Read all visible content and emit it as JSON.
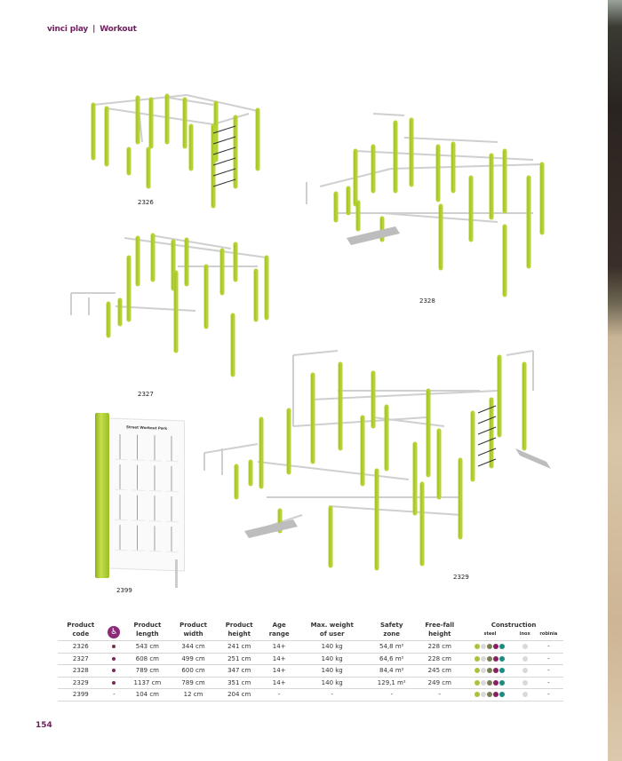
{
  "header": {
    "brand": "vinci play",
    "separator": "|",
    "section": "Workout"
  },
  "products": {
    "labels": [
      "2326",
      "2327",
      "2328",
      "2329",
      "2399"
    ],
    "board_title": "Street Workout Park"
  },
  "table": {
    "headers": {
      "code": [
        "Product",
        "code"
      ],
      "accessible_icon": "wheelchair-icon",
      "length": [
        "Product",
        "length"
      ],
      "width": [
        "Product",
        "width"
      ],
      "height": [
        "Product",
        "height"
      ],
      "age": [
        "Age",
        "range"
      ],
      "weight": [
        "Max. weight",
        "of user"
      ],
      "safety": [
        "Safety",
        "zone"
      ],
      "freefall": [
        "Free-fall",
        "height"
      ],
      "construction": "Construction",
      "steel": "steel",
      "inox": "inox",
      "robinia": "robinia"
    },
    "rows": [
      {
        "code": "2326",
        "accessible": true,
        "length": "543 cm",
        "width": "344 cm",
        "height": "241 cm",
        "age": "14+",
        "weight": "140 kg",
        "safety": "54,8 m²",
        "freefall": "228 cm",
        "robinia": "-"
      },
      {
        "code": "2327",
        "accessible": true,
        "length": "608 cm",
        "width": "499 cm",
        "height": "251 cm",
        "age": "14+",
        "weight": "140 kg",
        "safety": "64,6 m²",
        "freefall": "228 cm",
        "robinia": "-"
      },
      {
        "code": "2328",
        "accessible": true,
        "length": "789 cm",
        "width": "600 cm",
        "height": "347 cm",
        "age": "14+",
        "weight": "140 kg",
        "safety": "84,4 m²",
        "freefall": "245 cm",
        "robinia": "-"
      },
      {
        "code": "2329",
        "accessible": true,
        "length": "1137 cm",
        "width": "789 cm",
        "height": "351 cm",
        "age": "14+",
        "weight": "140 kg",
        "safety": "129,1 m²",
        "freefall": "249 cm",
        "robinia": "-"
      },
      {
        "code": "2399",
        "accessible": false,
        "accessible_text": "-",
        "length": "104 cm",
        "width": "12 cm",
        "height": "204 cm",
        "age": "-",
        "weight": "-",
        "safety": "-",
        "freefall": "-",
        "robinia": "-"
      }
    ],
    "steel_colors": [
      "#a9c43c",
      "#d9d9d9",
      "#7b7f56",
      "#8a1f5d",
      "#1b8c82"
    ],
    "inox_color": "#d9d9d9"
  },
  "page_number": "154",
  "colors": {
    "brand": "#6d1f5b",
    "post": "#b5d334",
    "bar": "#cfcfcf"
  }
}
